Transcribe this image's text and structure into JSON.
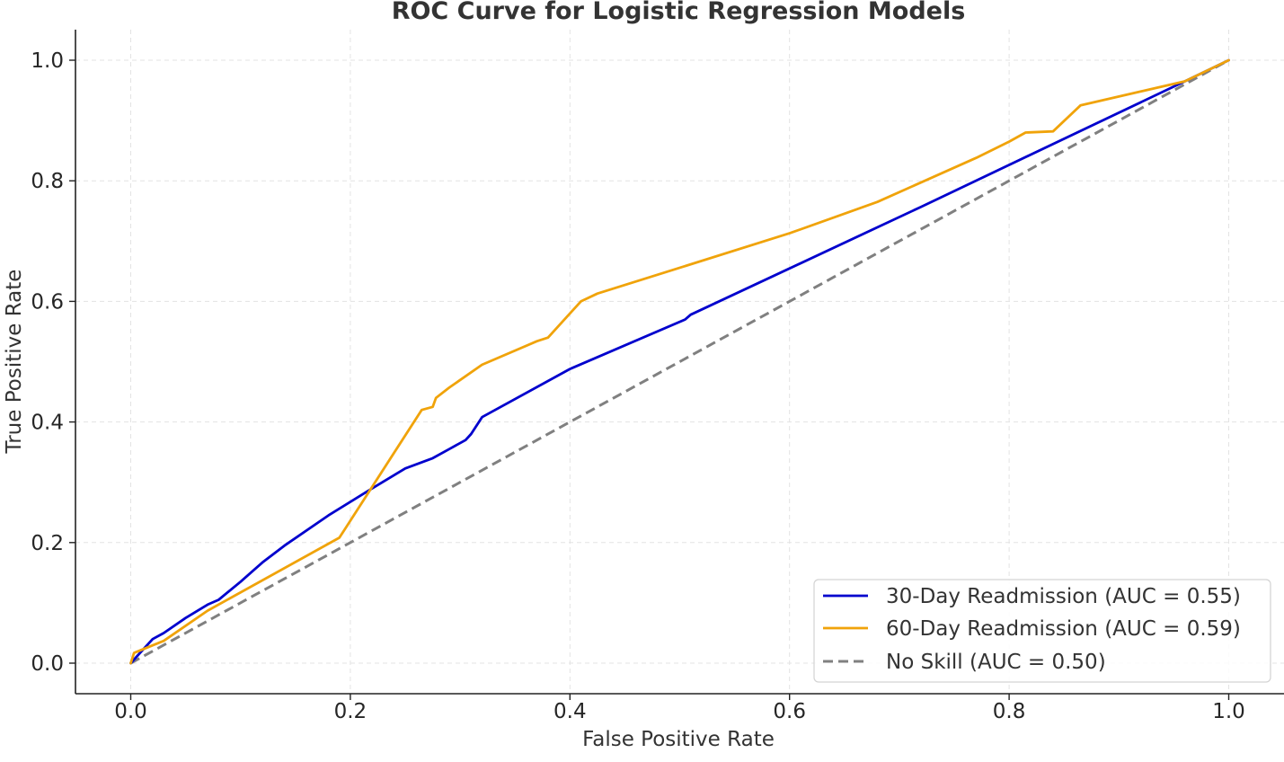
{
  "chart_data": {
    "type": "line",
    "title": "ROC Curve for Logistic Regression Models",
    "xlabel": "False Positive Rate",
    "ylabel": "True Positive Rate",
    "xlim": [
      -0.05,
      1.05
    ],
    "ylim": [
      -0.05,
      1.05
    ],
    "xticks": [
      0.0,
      0.2,
      0.4,
      0.6,
      0.8,
      1.0
    ],
    "xtick_labels": [
      "0.0",
      "0.2",
      "0.4",
      "0.6",
      "0.8",
      "1.0"
    ],
    "yticks": [
      0.0,
      0.2,
      0.4,
      0.6,
      0.8,
      1.0
    ],
    "ytick_labels": [
      "0.0",
      "0.2",
      "0.4",
      "0.6",
      "0.8",
      "1.0"
    ],
    "grid": true,
    "legend_position": "lower-right",
    "series": [
      {
        "name": "30-Day Readmission (AUC = 0.55)",
        "color": "#0000CD",
        "dash": "solid",
        "points": [
          [
            0.0,
            0.0
          ],
          [
            0.01,
            0.02
          ],
          [
            0.02,
            0.04
          ],
          [
            0.03,
            0.05
          ],
          [
            0.05,
            0.075
          ],
          [
            0.07,
            0.097
          ],
          [
            0.08,
            0.105
          ],
          [
            0.1,
            0.135
          ],
          [
            0.12,
            0.167
          ],
          [
            0.14,
            0.195
          ],
          [
            0.18,
            0.245
          ],
          [
            0.22,
            0.29
          ],
          [
            0.25,
            0.323
          ],
          [
            0.275,
            0.34
          ],
          [
            0.29,
            0.355
          ],
          [
            0.305,
            0.37
          ],
          [
            0.31,
            0.38
          ],
          [
            0.32,
            0.408
          ],
          [
            0.4,
            0.488
          ],
          [
            0.505,
            0.57
          ],
          [
            0.51,
            0.578
          ],
          [
            0.72,
            0.757
          ],
          [
            0.96,
            0.965
          ],
          [
            1.0,
            1.0
          ]
        ]
      },
      {
        "name": "60-Day Readmission (AUC = 0.59)",
        "color": "#F0A30A",
        "dash": "solid",
        "points": [
          [
            0.0,
            0.0
          ],
          [
            0.003,
            0.017
          ],
          [
            0.03,
            0.037
          ],
          [
            0.07,
            0.087
          ],
          [
            0.19,
            0.208
          ],
          [
            0.265,
            0.42
          ],
          [
            0.275,
            0.425
          ],
          [
            0.278,
            0.44
          ],
          [
            0.29,
            0.457
          ],
          [
            0.32,
            0.495
          ],
          [
            0.37,
            0.534
          ],
          [
            0.38,
            0.54
          ],
          [
            0.41,
            0.6
          ],
          [
            0.425,
            0.613
          ],
          [
            0.6,
            0.713
          ],
          [
            0.68,
            0.765
          ],
          [
            0.77,
            0.838
          ],
          [
            0.8,
            0.865
          ],
          [
            0.815,
            0.88
          ],
          [
            0.84,
            0.882
          ],
          [
            0.865,
            0.925
          ],
          [
            0.96,
            0.965
          ],
          [
            1.0,
            1.0
          ]
        ]
      },
      {
        "name": "No Skill (AUC = 0.50)",
        "color": "#808080",
        "dash": "dashed",
        "points": [
          [
            0.0,
            0.0
          ],
          [
            1.0,
            1.0
          ]
        ]
      }
    ]
  }
}
